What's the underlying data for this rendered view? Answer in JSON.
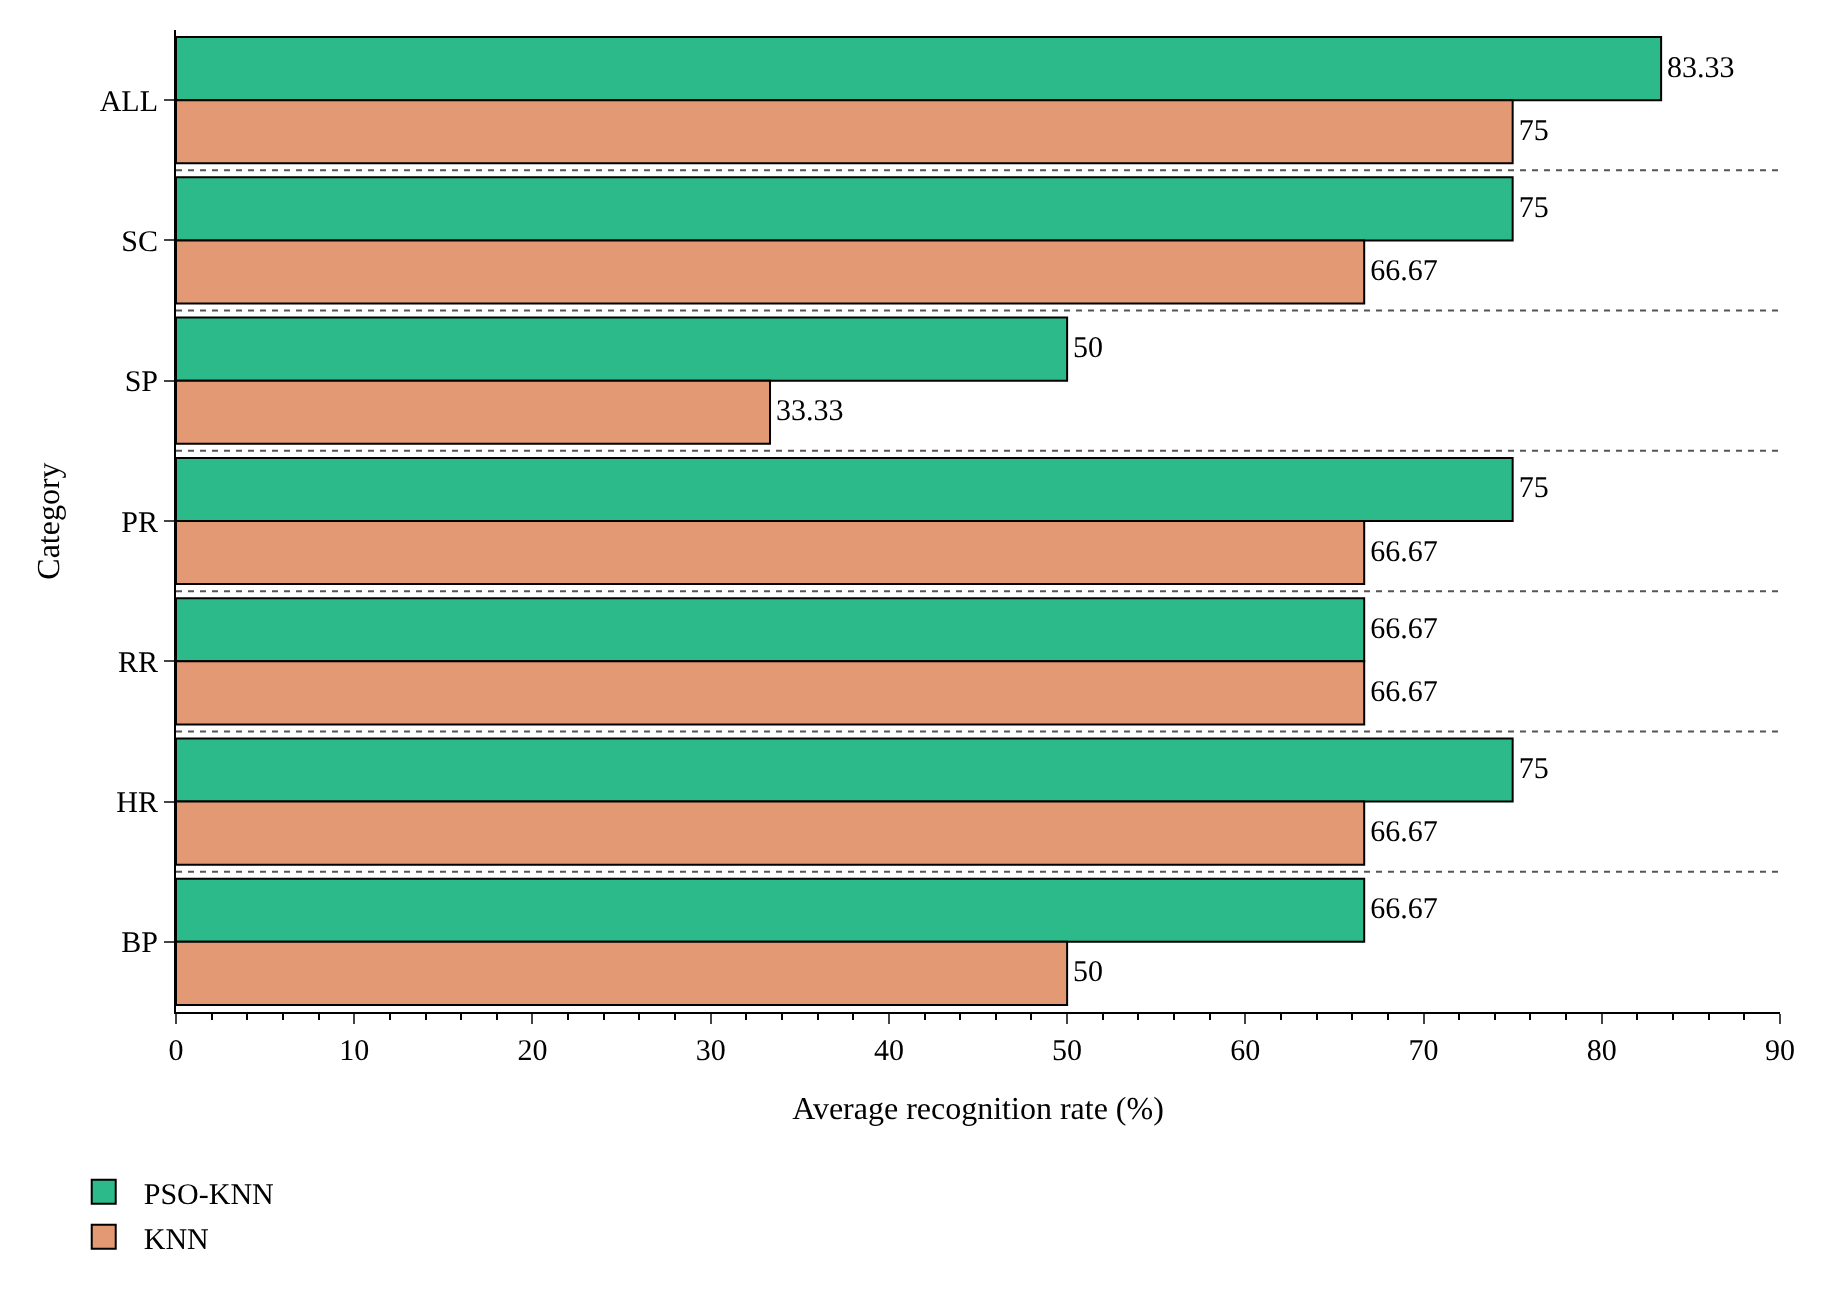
{
  "chart_data": {
    "type": "bar",
    "orientation": "horizontal",
    "xlabel": "Average recognition rate (%)",
    "ylabel": "Category",
    "categories": [
      "ALL",
      "SC",
      "SP",
      "PR",
      "RR",
      "HR",
      "BP"
    ],
    "series": [
      {
        "name": "PSO-KNN",
        "color": "#2dba8a",
        "values": [
          83.33,
          75,
          50,
          75,
          66.67,
          75,
          66.67
        ]
      },
      {
        "name": "KNN",
        "color": "#e39a74",
        "values": [
          75,
          66.67,
          33.33,
          66.67,
          66.67,
          66.67,
          50
        ]
      }
    ],
    "xlim": [
      0,
      90
    ],
    "xticks": [
      0,
      10,
      20,
      30,
      40,
      50,
      60,
      70,
      80,
      90
    ],
    "grid": "y",
    "legend": "bottom left",
    "data_labels": true
  }
}
